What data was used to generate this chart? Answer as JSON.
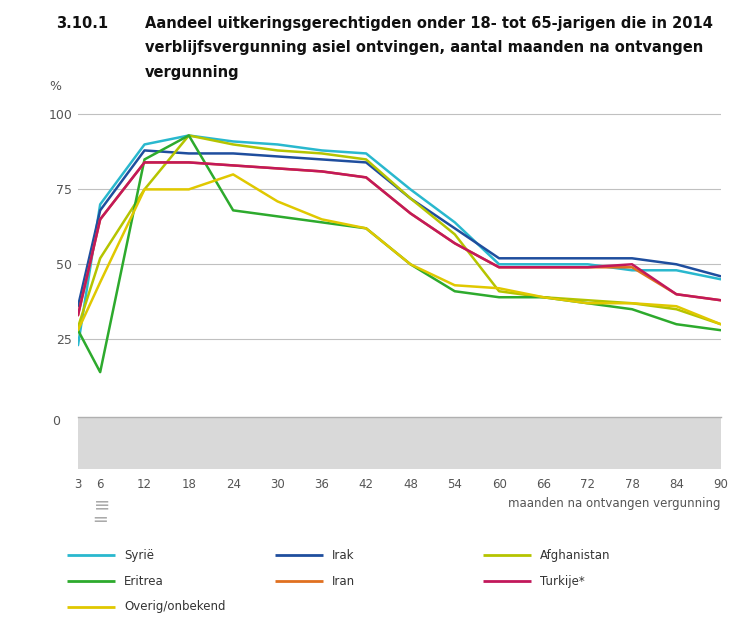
{
  "title_number": "3.10.1",
  "title_line1": "Aandeel uitkeringsgerechtigden onder 18- tot 65-jarigen die in 2014",
  "title_line2": "verblijfsvergunning asiel ontvingen, aantal maanden na ontvangen",
  "title_line3": "vergunning",
  "ylabel": "%",
  "xlabel": "maanden na ontvangen vergunning",
  "x_ticks": [
    3,
    6,
    12,
    18,
    24,
    30,
    36,
    42,
    48,
    54,
    60,
    66,
    72,
    78,
    84,
    90
  ],
  "ylim_main": [
    0,
    105
  ],
  "series": {
    "Syrie": {
      "color": "#29b8ce",
      "data_x": [
        3,
        6,
        12,
        18,
        24,
        30,
        36,
        42,
        48,
        54,
        60,
        66,
        72,
        78,
        84,
        90
      ],
      "data_y": [
        23,
        70,
        90,
        93,
        91,
        90,
        88,
        87,
        75,
        64,
        50,
        50,
        50,
        48,
        48,
        45
      ]
    },
    "Irak": {
      "color": "#1f4e9e",
      "data_x": [
        3,
        6,
        12,
        18,
        24,
        30,
        36,
        42,
        48,
        54,
        60,
        66,
        72,
        78,
        84,
        90
      ],
      "data_y": [
        36,
        68,
        88,
        87,
        87,
        86,
        85,
        84,
        72,
        62,
        52,
        52,
        52,
        52,
        50,
        46
      ]
    },
    "Afghanistan": {
      "color": "#b5c400",
      "data_x": [
        3,
        6,
        12,
        18,
        24,
        30,
        36,
        42,
        48,
        54,
        60,
        66,
        72,
        78,
        84,
        90
      ],
      "data_y": [
        29,
        52,
        75,
        93,
        90,
        88,
        87,
        85,
        72,
        60,
        41,
        39,
        38,
        37,
        35,
        30
      ]
    },
    "Eritrea": {
      "color": "#2daa2d",
      "data_x": [
        3,
        6,
        12,
        18,
        24,
        30,
        36,
        42,
        48,
        54,
        60,
        66,
        72,
        78,
        84,
        90
      ],
      "data_y": [
        28,
        14,
        85,
        93,
        68,
        66,
        64,
        62,
        50,
        41,
        39,
        39,
        37,
        35,
        30,
        28
      ]
    },
    "Iran": {
      "color": "#e07020",
      "data_x": [
        3,
        6,
        12,
        18,
        24,
        30,
        36,
        42,
        48,
        54,
        60,
        66,
        72,
        78,
        84,
        90
      ],
      "data_y": [
        33,
        65,
        84,
        84,
        83,
        82,
        81,
        79,
        67,
        57,
        49,
        49,
        49,
        49,
        40,
        38
      ]
    },
    "Turkije": {
      "color": "#c2185b",
      "data_x": [
        3,
        6,
        12,
        18,
        24,
        30,
        36,
        42,
        48,
        54,
        60,
        66,
        72,
        78,
        84,
        90
      ],
      "data_y": [
        33,
        65,
        84,
        84,
        83,
        82,
        81,
        79,
        67,
        57,
        49,
        49,
        49,
        50,
        40,
        38
      ]
    },
    "Overig": {
      "color": "#e0c800",
      "data_x": [
        3,
        6,
        12,
        18,
        24,
        30,
        36,
        42,
        48,
        54,
        60,
        66,
        72,
        78,
        84,
        90
      ],
      "data_y": [
        28,
        44,
        75,
        75,
        80,
        71,
        65,
        62,
        50,
        43,
        42,
        39,
        37,
        37,
        36,
        30
      ]
    }
  },
  "legend": [
    {
      "label": "Syrië",
      "color": "#29b8ce"
    },
    {
      "label": "Irak",
      "color": "#1f4e9e"
    },
    {
      "label": "Afghanistan",
      "color": "#b5c400"
    },
    {
      "label": "Eritrea",
      "color": "#2daa2d"
    },
    {
      "label": "Iran",
      "color": "#e07020"
    },
    {
      "label": "Turkije*",
      "color": "#c2185b"
    },
    {
      "label": "Overig/onbekend",
      "color": "#e0c800"
    }
  ],
  "fig_width": 7.43,
  "fig_height": 6.42,
  "dpi": 100
}
